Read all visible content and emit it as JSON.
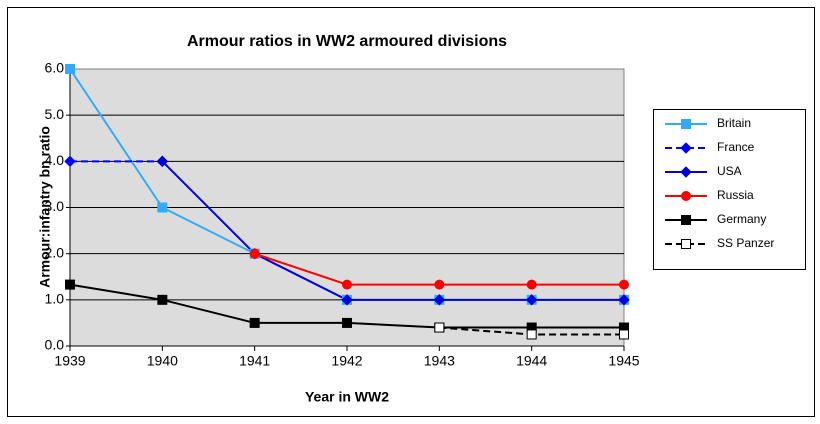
{
  "chart_data": {
    "type": "line",
    "title": "Armour ratios in WW2 armoured divisions",
    "x_label": "Year in WW2",
    "y_label": "Armour:infantry bn ratio",
    "categories": [
      "1939",
      "1940",
      "1941",
      "1942",
      "1943",
      "1944",
      "1945"
    ],
    "series": [
      {
        "name": "Britain",
        "color": "#33aaff",
        "marker": "square",
        "dashed": false,
        "values": [
          6.0,
          3.0,
          2.0,
          1.0,
          1.0,
          1.0,
          1.0
        ]
      },
      {
        "name": "France",
        "color": "#0000ff",
        "marker": "diamond",
        "dashed": true,
        "values": [
          4.0,
          4.0,
          null,
          null,
          null,
          null,
          null
        ]
      },
      {
        "name": "USA",
        "color": "#0000dd",
        "marker": "diamond",
        "dashed": false,
        "values": [
          null,
          4.0,
          2.0,
          1.0,
          1.0,
          1.0,
          1.0
        ]
      },
      {
        "name": "Russia",
        "color": "#ff0000",
        "marker": "circle",
        "dashed": false,
        "values": [
          null,
          null,
          2.0,
          1.33,
          1.33,
          1.33,
          1.33
        ]
      },
      {
        "name": "Germany",
        "color": "#000000",
        "marker": "square",
        "dashed": false,
        "values": [
          1.33,
          1.0,
          0.5,
          0.5,
          0.4,
          0.4,
          0.4
        ]
      },
      {
        "name": "SS Panzer",
        "color": "#000000",
        "marker": "open-square",
        "dashed": true,
        "values": [
          null,
          null,
          null,
          null,
          0.4,
          0.25,
          0.25
        ]
      }
    ],
    "ylim": [
      0,
      6
    ],
    "yticks": [
      {
        "value": 0,
        "label": "0.0"
      },
      {
        "value": 1,
        "label": "1.0"
      },
      {
        "value": 2,
        "label": "2.0"
      },
      {
        "value": 3,
        "label": "3.0"
      },
      {
        "value": 4,
        "label": "4.0"
      },
      {
        "value": 5,
        "label": "5.0"
      },
      {
        "value": 6,
        "label": "6.0"
      }
    ],
    "grid": true,
    "legend": "right"
  }
}
